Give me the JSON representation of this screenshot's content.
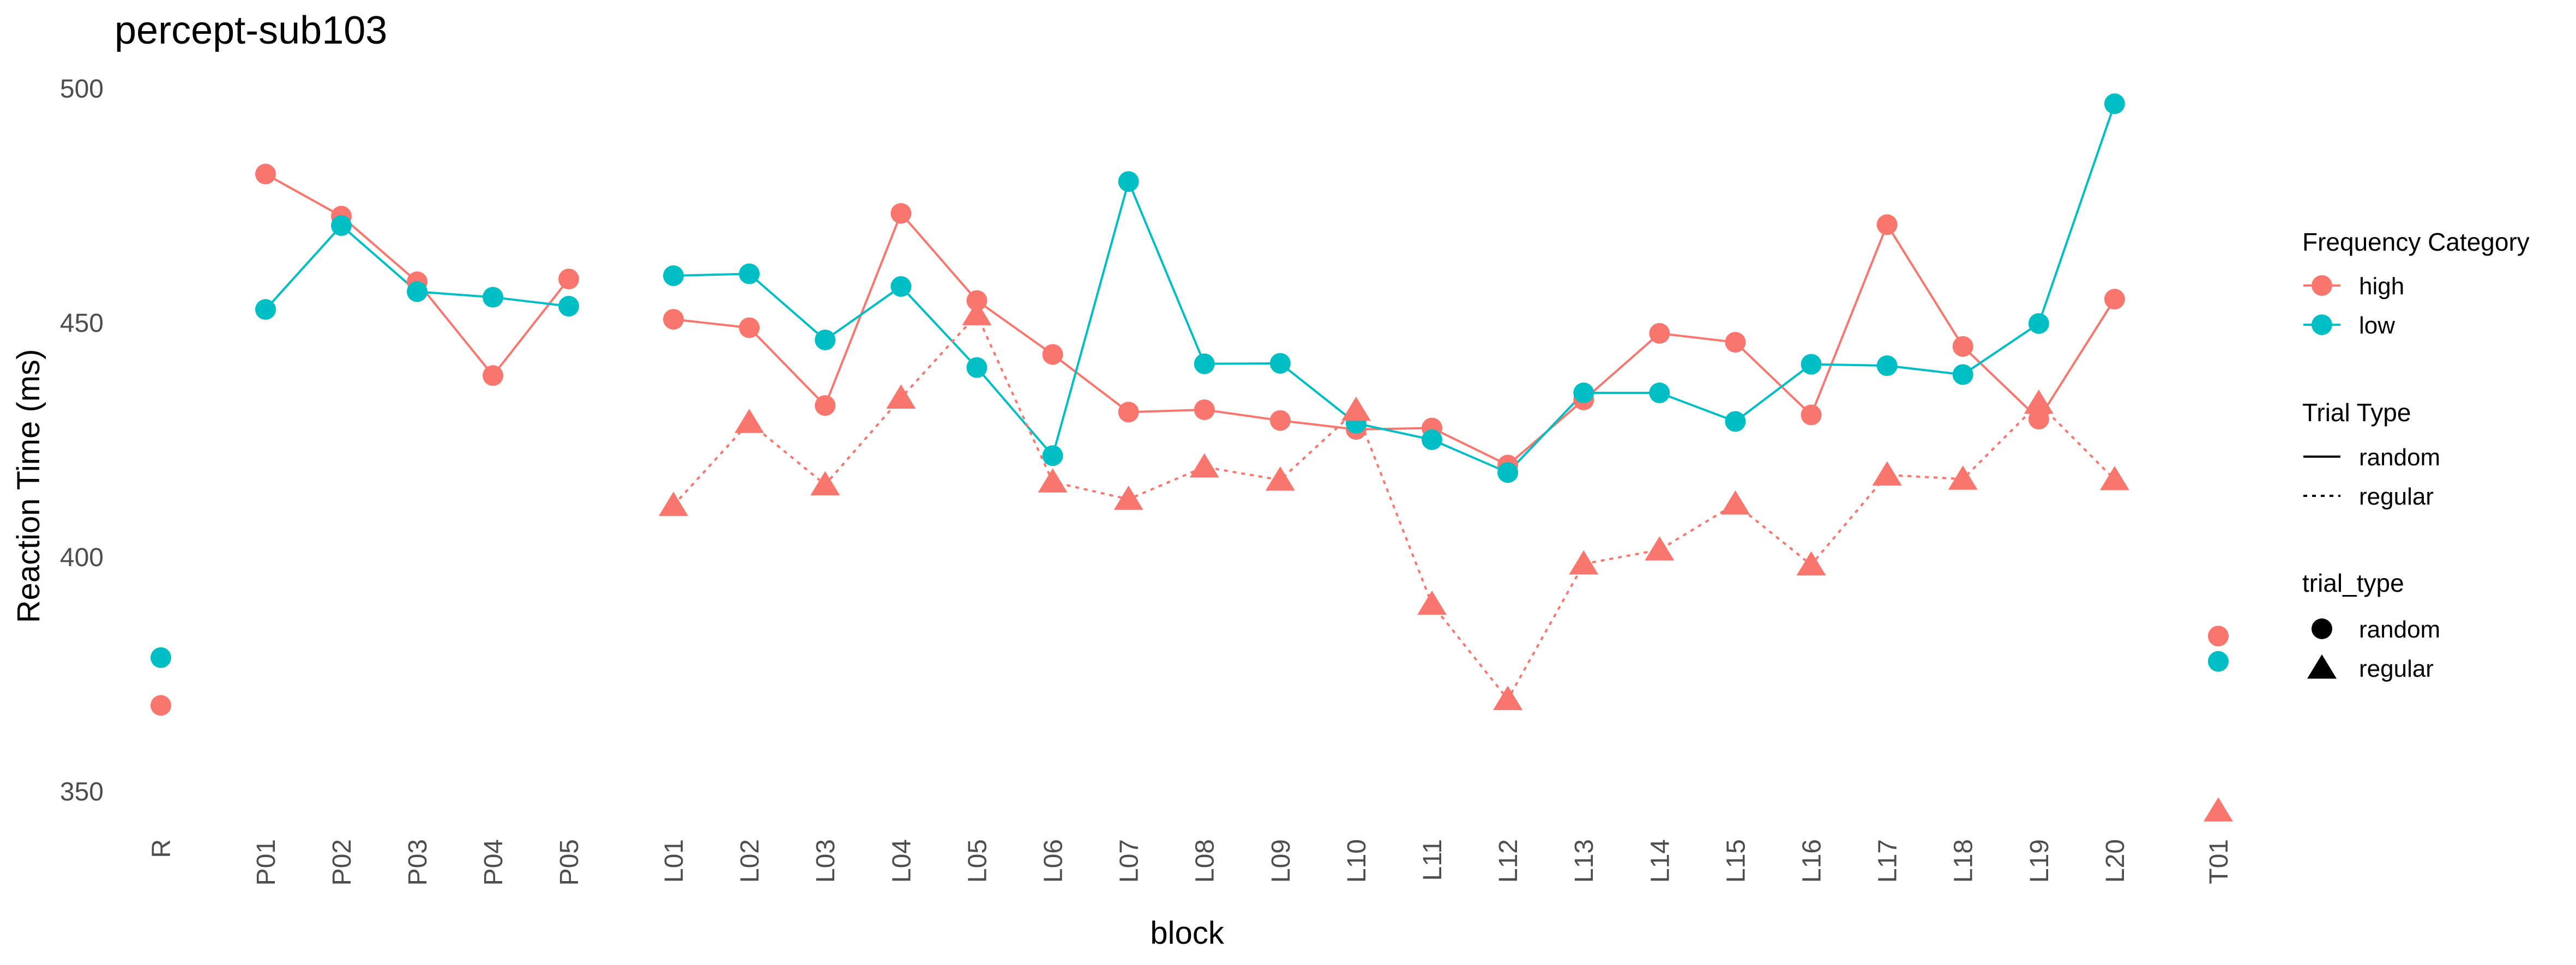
{
  "chart_data": {
    "type": "line",
    "title": "percept-sub103",
    "xlabel": "block",
    "ylabel": "Reaction Time (ms)",
    "ylim": [
      337,
      513
    ],
    "yticks": [
      350,
      400,
      450,
      500
    ],
    "grid": false,
    "categories": [
      "R",
      "P01",
      "P02",
      "P03",
      "P04",
      "P05",
      "L01",
      "L02",
      "L03",
      "L04",
      "L05",
      "L06",
      "L07",
      "L08",
      "L09",
      "L10",
      "L11",
      "L12",
      "L13",
      "L14",
      "L15",
      "L16",
      "L17",
      "L18",
      "L19",
      "L20",
      "T01"
    ],
    "series": [
      {
        "name": "high",
        "frequency": "high",
        "trial_type": "random",
        "marker": "circle",
        "line": "solid",
        "color": "#F8766D",
        "groups": [
          {
            "x": [
              "R"
            ],
            "y": [
              368.3
            ]
          },
          {
            "x": [
              "P01",
              "P02",
              "P03",
              "P04",
              "P05"
            ],
            "y": [
              481.7,
              472.7,
              458.7,
              438.7,
              459.3
            ]
          },
          {
            "x": [
              "L01",
              "L02",
              "L03",
              "L04",
              "L05",
              "L06",
              "L07",
              "L08",
              "L09",
              "L10",
              "L11",
              "L12",
              "L13",
              "L14",
              "L15",
              "L16",
              "L17",
              "L18",
              "L19",
              "L20"
            ],
            "y": [
              450.7,
              448.9,
              432.3,
              473.3,
              454.7,
              443.2,
              430.9,
              431.4,
              429.1,
              427.2,
              427.5,
              419.6,
              433.5,
              447.7,
              445.8,
              430.3,
              470.9,
              444.9,
              429.4,
              455.0
            ]
          },
          {
            "x": [
              "T01"
            ],
            "y": [
              383.1
            ]
          }
        ]
      },
      {
        "name": "low",
        "frequency": "low",
        "trial_type": "random",
        "marker": "circle",
        "line": "solid",
        "color": "#00BFC4",
        "groups": [
          {
            "x": [
              "R"
            ],
            "y": [
              378.5
            ]
          },
          {
            "x": [
              "P01",
              "P02",
              "P03",
              "P04",
              "P05"
            ],
            "y": [
              452.8,
              470.7,
              456.6,
              455.4,
              453.5
            ]
          },
          {
            "x": [
              "L01",
              "L02",
              "L03",
              "L04",
              "L05",
              "L06",
              "L07",
              "L08",
              "L09",
              "L10",
              "L11",
              "L12",
              "L13",
              "L14",
              "L15",
              "L16",
              "L17",
              "L18",
              "L19",
              "L20"
            ],
            "y": [
              460.0,
              460.4,
              446.3,
              457.7,
              440.4,
              421.6,
              480.1,
              441.2,
              441.3,
              428.5,
              425.0,
              418.0,
              435.0,
              435.0,
              428.9,
              441.1,
              440.8,
              438.9,
              449.8,
              496.7
            ]
          },
          {
            "x": [
              "T01"
            ],
            "y": [
              377.7
            ]
          }
        ]
      },
      {
        "name": "high",
        "frequency": "high",
        "trial_type": "regular",
        "marker": "triangle",
        "line": "dotted",
        "color": "#F8766D",
        "groups": [
          {
            "x": [
              "L01",
              "L02",
              "L03",
              "L04",
              "L05",
              "L06",
              "L07",
              "L08",
              "L09",
              "L10",
              "L11",
              "L12",
              "L13",
              "L14",
              "L15",
              "L16",
              "L17",
              "L18",
              "L19",
              "L20"
            ],
            "y": [
              411.0,
              428.7,
              415.4,
              433.9,
              451.7,
              416.0,
              412.3,
              419.2,
              416.4,
              431.3,
              389.9,
              369.6,
              398.5,
              401.5,
              411.3,
              398.3,
              417.5,
              416.6,
              432.8,
              416.5
            ]
          },
          {
            "x": [
              "T01"
            ],
            "y": [
              345.8
            ]
          }
        ]
      }
    ],
    "legends": [
      {
        "title": "Frequency Category",
        "items": [
          {
            "label": "high",
            "color": "#F8766D"
          },
          {
            "label": "low",
            "color": "#00BFC4"
          }
        ]
      },
      {
        "title": "Trial Type",
        "items": [
          {
            "label": "random",
            "line": "solid"
          },
          {
            "label": "regular",
            "line": "dotted"
          }
        ]
      },
      {
        "title": "trial_type",
        "items": [
          {
            "label": "random",
            "marker": "circle"
          },
          {
            "label": "regular",
            "marker": "triangle"
          }
        ]
      }
    ],
    "legend_position": "right"
  }
}
